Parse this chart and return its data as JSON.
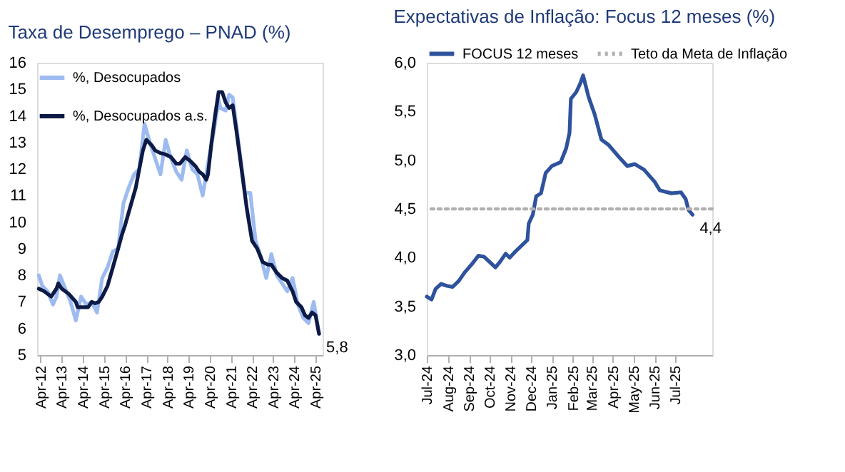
{
  "chart_data": [
    {
      "type": "line",
      "title": "Taxa de Desemprego – PNAD (%)",
      "legend": "top left",
      "grid": false,
      "line_style": "solid",
      "marker": "none",
      "xlim": [
        "2012-02",
        "2025-08"
      ],
      "xticks": [
        {
          "value": "2012-04",
          "label": "Apr-12"
        },
        {
          "value": "2013-04",
          "label": "Apr-13"
        },
        {
          "value": "2014-04",
          "label": "Apr-14"
        },
        {
          "value": "2015-04",
          "label": "Apr-15"
        },
        {
          "value": "2016-04",
          "label": "Apr-16"
        },
        {
          "value": "2017-04",
          "label": "Apr-17"
        },
        {
          "value": "2018-04",
          "label": "Apr-18"
        },
        {
          "value": "2019-04",
          "label": "Apr-19"
        },
        {
          "value": "2020-04",
          "label": "Apr-20"
        },
        {
          "value": "2021-04",
          "label": "Apr-21"
        },
        {
          "value": "2022-04",
          "label": "Apr-22"
        },
        {
          "value": "2023-04",
          "label": "Apr-23"
        },
        {
          "value": "2024-04",
          "label": "Apr-24"
        },
        {
          "value": "2025-04",
          "label": "Apr-25"
        }
      ],
      "ylim": [
        5,
        16
      ],
      "yticks": [
        5,
        6,
        7,
        8,
        9,
        10,
        11,
        12,
        13,
        14,
        15,
        16
      ],
      "series": [
        {
          "name": "%, Desocupados",
          "color": "#9dbbf0",
          "x": [
            "2012-03",
            "2012-05",
            "2012-08",
            "2012-11",
            "2013-01",
            "2013-03",
            "2013-06",
            "2013-09",
            "2013-12",
            "2014-03",
            "2014-06",
            "2014-09",
            "2014-12",
            "2015-03",
            "2015-06",
            "2015-09",
            "2015-12",
            "2016-03",
            "2016-06",
            "2016-09",
            "2016-12",
            "2017-03",
            "2017-06",
            "2017-09",
            "2017-12",
            "2018-03",
            "2018-06",
            "2018-09",
            "2018-12",
            "2019-03",
            "2019-06",
            "2019-09",
            "2019-12",
            "2020-03",
            "2020-06",
            "2020-09",
            "2020-10",
            "2021-01",
            "2021-03",
            "2021-05",
            "2021-07",
            "2021-10",
            "2021-12",
            "2022-03",
            "2022-06",
            "2022-09",
            "2022-12",
            "2023-03",
            "2023-06",
            "2023-09",
            "2023-12",
            "2024-03",
            "2024-06",
            "2024-09",
            "2024-12",
            "2025-03",
            "2025-06"
          ],
          "values": [
            8.0,
            7.6,
            7.4,
            6.9,
            7.2,
            8.0,
            7.5,
            7.0,
            6.3,
            7.2,
            6.9,
            7.0,
            6.6,
            7.9,
            8.3,
            8.9,
            9.0,
            10.7,
            11.3,
            11.8,
            12.0,
            13.7,
            13.0,
            12.4,
            11.8,
            13.1,
            12.4,
            11.9,
            11.6,
            12.7,
            12.0,
            11.8,
            11.0,
            12.2,
            13.3,
            14.6,
            14.3,
            14.2,
            14.8,
            14.7,
            13.7,
            12.1,
            11.1,
            11.1,
            9.3,
            8.7,
            7.9,
            8.8,
            8.0,
            7.7,
            7.4,
            7.9,
            6.9,
            6.4,
            6.2,
            7.0,
            5.8
          ]
        },
        {
          "name": "%, Desocupados a.s.",
          "color": "#0c1a45",
          "x": [
            "2012-03",
            "2012-06",
            "2012-10",
            "2013-01",
            "2013-02",
            "2013-04",
            "2013-08",
            "2013-12",
            "2014-01",
            "2014-04",
            "2014-07",
            "2014-09",
            "2014-11",
            "2015-01",
            "2015-03",
            "2015-06",
            "2015-09",
            "2015-12",
            "2016-02",
            "2016-04",
            "2016-07",
            "2016-10",
            "2016-12",
            "2017-02",
            "2017-04",
            "2017-07",
            "2017-09",
            "2017-12",
            "2018-03",
            "2018-06",
            "2018-09",
            "2018-11",
            "2019-02",
            "2019-05",
            "2019-08",
            "2019-10",
            "2019-12",
            "2020-02",
            "2020-03",
            "2020-05",
            "2020-07",
            "2020-09",
            "2020-11",
            "2021-01",
            "2021-03",
            "2021-05",
            "2021-07",
            "2021-09",
            "2021-11",
            "2022-01",
            "2022-04",
            "2022-07",
            "2022-10",
            "2023-01",
            "2023-03",
            "2023-06",
            "2023-09",
            "2023-12",
            "2024-03",
            "2024-05",
            "2024-08",
            "2024-10",
            "2024-12",
            "2025-02",
            "2025-04",
            "2025-06"
          ],
          "values": [
            7.5,
            7.4,
            7.2,
            7.5,
            7.7,
            7.5,
            7.3,
            7.0,
            6.8,
            6.8,
            6.8,
            7.0,
            6.95,
            7.0,
            7.2,
            7.6,
            8.3,
            9.0,
            9.5,
            9.9,
            10.6,
            11.3,
            12.0,
            12.7,
            13.1,
            12.9,
            12.7,
            12.6,
            12.55,
            12.45,
            12.2,
            12.2,
            12.45,
            12.3,
            12.1,
            11.9,
            11.8,
            11.6,
            11.8,
            13.0,
            14.0,
            14.9,
            14.9,
            14.5,
            14.3,
            14.4,
            13.5,
            12.5,
            11.5,
            10.5,
            9.3,
            9.0,
            8.5,
            8.4,
            8.4,
            8.1,
            7.9,
            7.8,
            7.4,
            7.0,
            6.8,
            6.5,
            6.4,
            6.6,
            6.5,
            5.8
          ]
        }
      ],
      "annotations": [
        {
          "text": "5,8",
          "x": "2025-06",
          "y": 5.8
        }
      ]
    },
    {
      "type": "line",
      "title": "Expectativas de Inflação: Focus 12 meses (%)",
      "legend": "top",
      "grid": false,
      "line_style": "solid",
      "marker": "none",
      "xlim": [
        "2024-07-01",
        "2025-08-25"
      ],
      "xticks": [
        {
          "value": "2024-07-01",
          "label": "Jul-24"
        },
        {
          "value": "2024-08-01",
          "label": "Aug-24"
        },
        {
          "value": "2024-09-01",
          "label": "Sep-24"
        },
        {
          "value": "2024-10-01",
          "label": "Oct-24"
        },
        {
          "value": "2024-11-01",
          "label": "Nov-24"
        },
        {
          "value": "2024-12-01",
          "label": "Dec-24"
        },
        {
          "value": "2025-01-01",
          "label": "Jan-25"
        },
        {
          "value": "2025-02-01",
          "label": "Feb-25"
        },
        {
          "value": "2025-03-01",
          "label": "Mar-25"
        },
        {
          "value": "2025-04-01",
          "label": "Apr-25"
        },
        {
          "value": "2025-05-01",
          "label": "May-25"
        },
        {
          "value": "2025-06-01",
          "label": "Jun-25"
        },
        {
          "value": "2025-07-01",
          "label": "Jul-25"
        }
      ],
      "ylim": [
        3.0,
        6.0
      ],
      "yticks": [
        {
          "value": 3.0,
          "label": "3,0"
        },
        {
          "value": 3.5,
          "label": "3,5"
        },
        {
          "value": 4.0,
          "label": "4,0"
        },
        {
          "value": 4.5,
          "label": "4,5"
        },
        {
          "value": 5.0,
          "label": "5,0"
        },
        {
          "value": 5.5,
          "label": "5,5"
        },
        {
          "value": 6.0,
          "label": "6,0"
        }
      ],
      "series": [
        {
          "name": "FOCUS 12 meses",
          "color": "#2e529c",
          "x": [
            "2024-07-01",
            "2024-07-08",
            "2024-07-14",
            "2024-07-22",
            "2024-07-31",
            "2024-08-08",
            "2024-08-17",
            "2024-08-26",
            "2024-09-05",
            "2024-09-15",
            "2024-09-23",
            "2024-10-10",
            "2024-10-16",
            "2024-10-25",
            "2024-10-31",
            "2024-11-08",
            "2024-11-17",
            "2024-11-26",
            "2024-11-28",
            "2024-12-04",
            "2024-12-09",
            "2024-12-16",
            "2024-12-23",
            "2025-01-01",
            "2025-01-14",
            "2025-01-22",
            "2025-01-27",
            "2025-01-29",
            "2025-02-06",
            "2025-02-12",
            "2025-02-16",
            "2025-02-24",
            "2025-03-05",
            "2025-03-15",
            "2025-03-25",
            "2025-04-10",
            "2025-04-22",
            "2025-05-03",
            "2025-05-17",
            "2025-06-01",
            "2025-06-09",
            "2025-06-26",
            "2025-07-10",
            "2025-07-17",
            "2025-07-21",
            "2025-07-27"
          ],
          "values": [
            3.6,
            3.57,
            3.68,
            3.73,
            3.71,
            3.7,
            3.76,
            3.85,
            3.93,
            4.02,
            4.01,
            3.9,
            3.95,
            4.04,
            4.0,
            4.06,
            4.12,
            4.18,
            4.35,
            4.44,
            4.63,
            4.66,
            4.87,
            4.94,
            4.98,
            5.12,
            5.28,
            5.63,
            5.7,
            5.79,
            5.87,
            5.65,
            5.47,
            5.21,
            5.16,
            5.03,
            4.94,
            4.96,
            4.9,
            4.78,
            4.69,
            4.66,
            4.67,
            4.6,
            4.49,
            4.44
          ]
        }
      ],
      "ref_lines": [
        {
          "axis": "y",
          "value": 4.5,
          "label": "Teto da Meta de Inflação",
          "color": "#b0b0b0",
          "line_style": "dotted"
        }
      ],
      "annotations": [
        {
          "text": "4,4",
          "x": "2025-07-27",
          "y": 4.44
        }
      ]
    }
  ]
}
